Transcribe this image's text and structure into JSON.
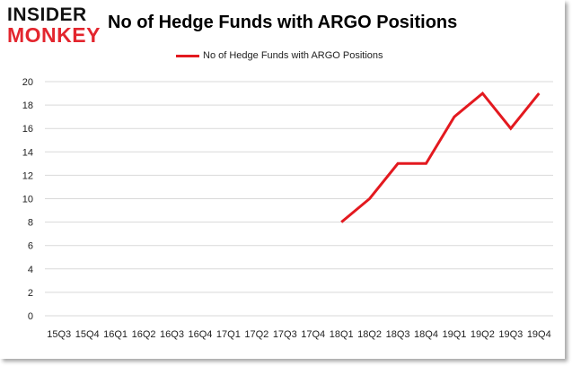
{
  "logo": {
    "top": "INSIDER",
    "bottom": "MONKEY"
  },
  "colors": {
    "series": "#e3191f",
    "grid": "#d9d9d9",
    "logo_red": "#e3262e"
  },
  "chart_data": {
    "type": "line",
    "title": "No of Hedge Funds with ARGO Positions",
    "xlabel": "",
    "ylabel": "",
    "categories": [
      "15Q3",
      "15Q4",
      "16Q1",
      "16Q2",
      "16Q3",
      "16Q4",
      "17Q1",
      "17Q2",
      "17Q3",
      "17Q4",
      "18Q1",
      "18Q2",
      "18Q3",
      "18Q4",
      "19Q1",
      "19Q2",
      "19Q3",
      "19Q4"
    ],
    "series": [
      {
        "name": "No of Hedge Funds with ARGO Positions",
        "values": [
          null,
          null,
          null,
          null,
          null,
          null,
          null,
          null,
          null,
          null,
          8,
          10,
          13,
          13,
          17,
          19,
          16,
          19
        ]
      }
    ],
    "ylim": [
      0,
      20
    ],
    "yticks": [
      0,
      2,
      4,
      6,
      8,
      10,
      12,
      14,
      16,
      18,
      20
    ],
    "grid": true,
    "legend": "top"
  }
}
